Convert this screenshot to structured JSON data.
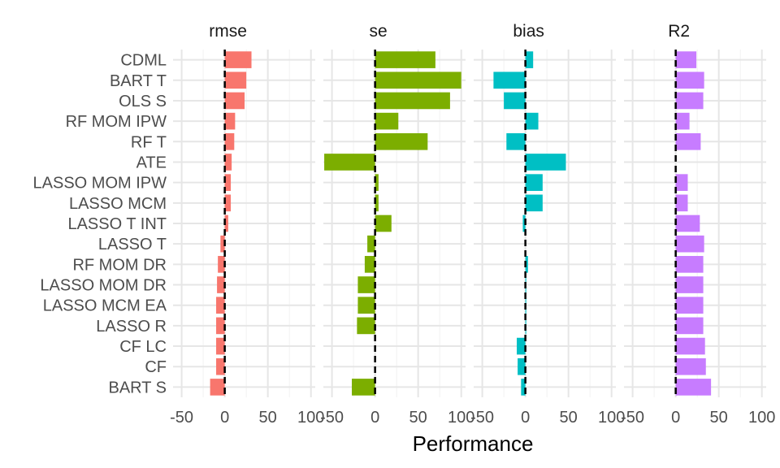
{
  "chart_data": {
    "type": "bar",
    "orientation": "horizontal",
    "facet": true,
    "xlabel": "Performance",
    "xlim": [
      -60,
      105
    ],
    "xticks": [
      -50,
      0,
      50,
      100
    ],
    "xtick_labels": [
      "-50",
      "0",
      "50",
      "100"
    ],
    "categories": [
      "CDML",
      "BART T",
      "OLS S",
      "RF MOM IPW",
      "RF T",
      "ATE",
      "LASSO MOM IPW",
      "LASSO MCM",
      "LASSO T INT",
      "LASSO T",
      "RF MOM DR",
      "LASSO MOM DR",
      "LASSO MCM EA",
      "LASSO R",
      "CF LC",
      "CF",
      "BART S"
    ],
    "reference_line": {
      "x": 0,
      "style": "dashed"
    },
    "grid": true,
    "panels": [
      {
        "title": "rmse",
        "color": "#F8766D",
        "values": [
          31,
          25,
          23,
          12,
          11,
          8,
          7,
          7,
          4,
          -5,
          -8,
          -9,
          -10,
          -10,
          -10,
          -10,
          -17
        ]
      },
      {
        "title": "se",
        "color": "#7CAE00",
        "values": [
          70,
          100,
          87,
          27,
          61,
          -59,
          4,
          4,
          19,
          -9,
          -12,
          -20,
          -20,
          -21,
          0,
          0,
          -27
        ]
      },
      {
        "title": "bias",
        "color": "#00BFC4",
        "values": [
          9,
          -37,
          -25,
          15,
          -22,
          47,
          20,
          20,
          -3,
          0,
          3,
          1,
          1,
          1,
          -10,
          -9,
          -5
        ]
      },
      {
        "title": "R2",
        "color": "#C77CFF",
        "values": [
          24,
          33,
          32,
          16,
          29,
          0,
          14,
          14,
          28,
          33,
          32,
          32,
          32,
          32,
          34,
          35,
          41
        ]
      }
    ]
  }
}
